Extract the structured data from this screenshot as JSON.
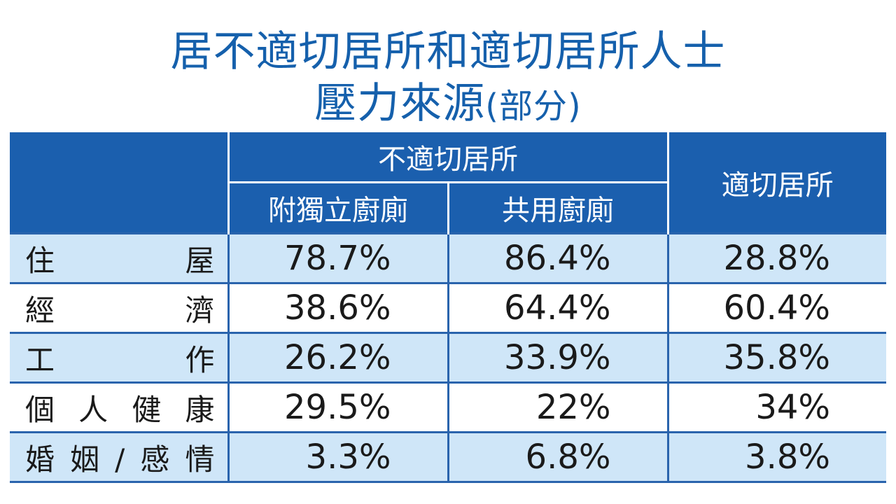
{
  "title": {
    "line1": "居不適切居所和適切居所人士",
    "line2_main": "壓力來源",
    "line2_sub": "(部分)"
  },
  "chart_data": {
    "type": "table",
    "title": "居不適切居所和適切居所人士壓力來源(部分)",
    "group_header": "不適切居所",
    "columns": [
      "附獨立廚廁",
      "共用廚廁",
      "適切居所"
    ],
    "rows": [
      {
        "label": "住屋",
        "values": [
          "78.7%",
          "86.4%",
          "28.8%"
        ]
      },
      {
        "label": "經濟",
        "values": [
          "38.6%",
          "64.4%",
          "60.4%"
        ]
      },
      {
        "label": "工作",
        "values": [
          "26.2%",
          "33.9%",
          "35.8%"
        ]
      },
      {
        "label": "個人健康",
        "values": [
          "29.5%",
          "22%",
          "34%"
        ]
      },
      {
        "label": "婚姻/感情",
        "values": [
          "3.3%",
          "6.8%",
          "3.8%"
        ]
      }
    ]
  },
  "colors": {
    "title_blue": "#1560ac",
    "header_blue": "#1b5fae",
    "stripe_light_blue": "#cfe6f8",
    "rule_blue": "#2a64ad"
  }
}
